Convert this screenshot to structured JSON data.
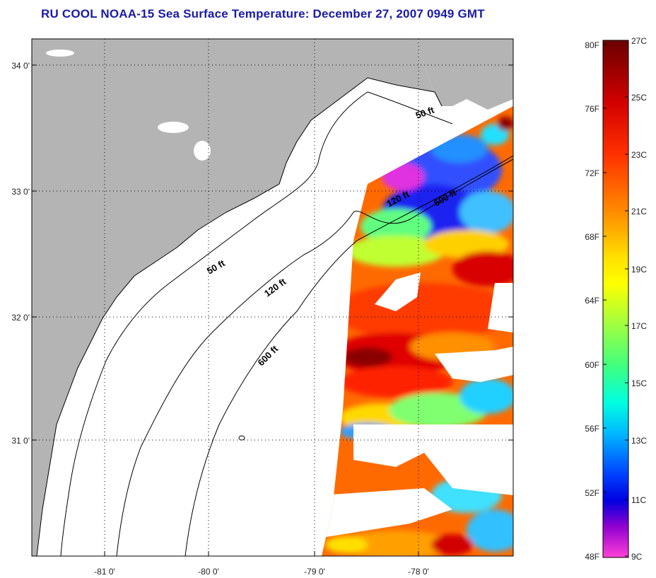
{
  "title": "RU COOL  NOAA-15  Sea Surface Temperature:  December 27, 2007 0949 GMT",
  "map": {
    "lon_ticks": [
      "-81 0'",
      "-80 0'",
      "-79 0'",
      "-78 0'"
    ],
    "lat_ticks": [
      "34 0'",
      "33 0'",
      "32 0'",
      "31 0'"
    ],
    "contours": [
      "50 ft",
      "120 ft",
      "600 ft",
      "50 ft",
      "120 ft",
      "600 ft"
    ],
    "colors": {
      "land": "#b4b4b4",
      "ocean": "#ffffff",
      "coast": "#000000"
    }
  },
  "colorbar": {
    "fahrenheit": [
      "80F",
      "76F",
      "72F",
      "68F",
      "64F",
      "60F",
      "56F",
      "52F",
      "48F"
    ],
    "celsius": [
      "27C",
      "25C",
      "23C",
      "21C",
      "19C",
      "17C",
      "15C",
      "13C",
      "11C",
      "9C"
    ],
    "colors": [
      "#7a0000",
      "#c80000",
      "#ff2a00",
      "#ff8000",
      "#ffc000",
      "#ffff00",
      "#c8ff30",
      "#70ff70",
      "#20ffd0",
      "#00d0ff",
      "#0070ff",
      "#0000f0",
      "#8000d0",
      "#ff40d0"
    ]
  }
}
